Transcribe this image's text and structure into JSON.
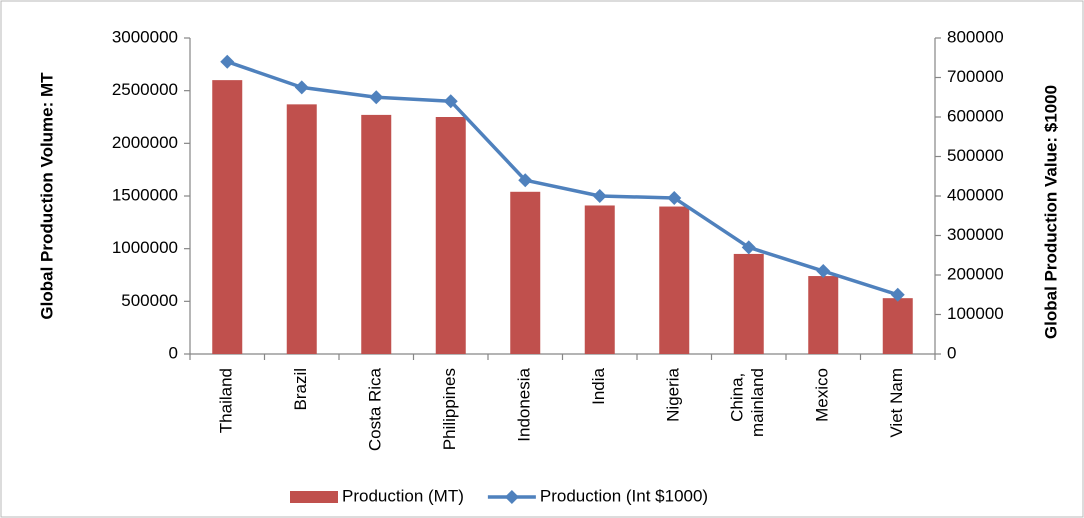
{
  "chart_data": {
    "type": "bar-line",
    "y_label": "Global Production Volume: MT",
    "y2_label": "Global Production Value: $1000",
    "categories": [
      "Thailand",
      "Brazil",
      "Costa Rica",
      "Philippines",
      "Indonesia",
      "India",
      "Nigeria",
      "China, mainland",
      "Mexico",
      "Viet Nam"
    ],
    "series": [
      {
        "name": "Production (MT)",
        "type": "bar",
        "color": "#c0504d",
        "values": [
          2600000,
          2370000,
          2270000,
          2250000,
          1540000,
          1410000,
          1400000,
          950000,
          740000,
          530000
        ]
      },
      {
        "name": "Production (Int $1000)",
        "type": "line",
        "axis": "y2",
        "color": "#4f81bd",
        "values": [
          740000,
          675000,
          650000,
          640000,
          440000,
          400000,
          395000,
          270000,
          210000,
          150000
        ]
      }
    ],
    "ylim": [
      0,
      3000000
    ],
    "yticks": [
      0,
      500000,
      1000000,
      1500000,
      2000000,
      2500000,
      3000000
    ],
    "y2lim": [
      0,
      800000
    ],
    "y2ticks": [
      0,
      100000,
      200000,
      300000,
      400000,
      500000,
      600000,
      700000,
      800000
    ],
    "grid": false,
    "legend": "bottom"
  }
}
